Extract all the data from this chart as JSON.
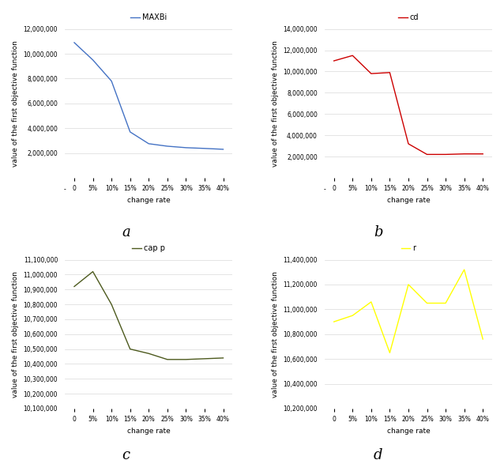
{
  "x_labels": [
    "0",
    "5%",
    "10%",
    "15%",
    "20%",
    "25%",
    "30%",
    "35%",
    "40%"
  ],
  "x_values": [
    0,
    1,
    2,
    3,
    4,
    5,
    6,
    7,
    8
  ],
  "maxbi_values": [
    10900000,
    9500000,
    7800000,
    3700000,
    2750000,
    2550000,
    2430000,
    2370000,
    2300000
  ],
  "maxbi_color": "#4472C4",
  "maxbi_label": "MAXBi",
  "maxbi_ylim": [
    0,
    12000000
  ],
  "maxbi_yticks": [
    2000000,
    4000000,
    6000000,
    8000000,
    10000000,
    12000000
  ],
  "cd_values": [
    11000000,
    11500000,
    9800000,
    9900000,
    3200000,
    2200000,
    2200000,
    2250000,
    2250000
  ],
  "cd_color": "#CC0000",
  "cd_label": "cd",
  "cd_ylim": [
    0,
    14000000
  ],
  "cd_yticks": [
    2000000,
    4000000,
    6000000,
    8000000,
    10000000,
    12000000,
    14000000
  ],
  "capp_values": [
    10920000,
    11020000,
    10800000,
    10500000,
    10470000,
    10430000,
    10430000,
    10435000,
    10440000
  ],
  "capp_color": "#4D5A1E",
  "capp_label": "cap p",
  "capp_ylim": [
    10100000,
    11100000
  ],
  "capp_yticks": [
    10100000,
    10200000,
    10300000,
    10400000,
    10500000,
    10600000,
    10700000,
    10800000,
    10900000,
    11000000,
    11100000
  ],
  "r_values": [
    10900000,
    10950000,
    11060000,
    10650000,
    11200000,
    11050000,
    11050000,
    11320000,
    10760000
  ],
  "r_color": "#FFFF00",
  "r_label": "r",
  "r_ylim": [
    10200000,
    11400000
  ],
  "r_yticks": [
    10200000,
    10400000,
    10600000,
    10800000,
    11000000,
    11200000,
    11400000
  ],
  "xlabel": "change rate",
  "ylabel": "value of the first objective function",
  "subplot_labels": [
    "a",
    "b",
    "c",
    "d"
  ],
  "bg_color": "#FFFFFF",
  "grid_color": "#D9D9D9",
  "tick_fontsize": 5.5,
  "label_fontsize": 6.5,
  "legend_fontsize": 7,
  "subplot_label_fontsize": 13
}
